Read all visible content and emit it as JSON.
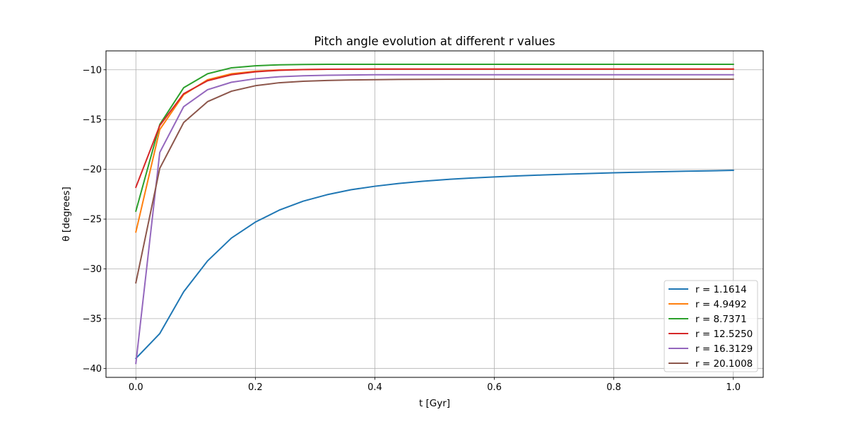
{
  "chart_data": {
    "type": "line",
    "title": "Pitch angle evolution at different r values",
    "xlabel": "t [Gyr]",
    "ylabel": "θ [degrees]",
    "xlim": [
      -0.05,
      1.05
    ],
    "ylim": [
      -40.9,
      -8.1
    ],
    "xticks": [
      0.0,
      0.2,
      0.4,
      0.6,
      0.8,
      1.0
    ],
    "xtick_labels": [
      "0.0",
      "0.2",
      "0.4",
      "0.6",
      "0.8",
      "1.0"
    ],
    "yticks": [
      -40,
      -35,
      -30,
      -25,
      -20,
      -15,
      -10
    ],
    "ytick_labels": [
      "−40",
      "−35",
      "−30",
      "−25",
      "−20",
      "−15",
      "−10"
    ],
    "grid": true,
    "legend_position": "lower-right",
    "x": [
      0.0,
      0.04,
      0.08,
      0.12,
      0.16,
      0.2,
      0.24,
      0.28,
      0.32,
      0.36,
      0.4,
      0.44,
      0.48,
      0.52,
      0.56,
      0.6,
      0.64,
      0.68,
      0.72,
      0.76,
      0.8,
      0.84,
      0.88,
      0.92,
      0.96,
      1.0
    ],
    "series": [
      {
        "name": "r = 1.1614",
        "color": "#1f77b4",
        "values": [
          -39.0,
          -36.5,
          -32.3,
          -29.2,
          -26.9,
          -25.3,
          -24.1,
          -23.2,
          -22.55,
          -22.05,
          -21.7,
          -21.42,
          -21.2,
          -21.02,
          -20.88,
          -20.76,
          -20.66,
          -20.57,
          -20.49,
          -20.42,
          -20.35,
          -20.29,
          -20.24,
          -20.19,
          -20.15,
          -20.1
        ]
      },
      {
        "name": "r = 4.9492",
        "color": "#ff7f0e",
        "values": [
          -26.3,
          -16.0,
          -12.5,
          -11.0,
          -10.4,
          -10.15,
          -10.02,
          -9.97,
          -9.95,
          -9.94,
          -9.93,
          -9.93,
          -9.93,
          -9.93,
          -9.93,
          -9.93,
          -9.93,
          -9.93,
          -9.93,
          -9.93,
          -9.93,
          -9.93,
          -9.93,
          -9.93,
          -9.93,
          -9.93
        ]
      },
      {
        "name": "r = 8.7371",
        "color": "#2ca02c",
        "values": [
          -24.2,
          -15.5,
          -11.8,
          -10.4,
          -9.8,
          -9.6,
          -9.5,
          -9.47,
          -9.45,
          -9.45,
          -9.45,
          -9.45,
          -9.45,
          -9.45,
          -9.45,
          -9.45,
          -9.45,
          -9.45,
          -9.45,
          -9.45,
          -9.45,
          -9.45,
          -9.45,
          -9.45,
          -9.45,
          -9.45
        ]
      },
      {
        "name": "r = 12.5250",
        "color": "#d62728",
        "values": [
          -21.8,
          -15.6,
          -12.4,
          -11.1,
          -10.5,
          -10.2,
          -10.05,
          -9.98,
          -9.95,
          -9.94,
          -9.93,
          -9.93,
          -9.93,
          -9.93,
          -9.93,
          -9.93,
          -9.93,
          -9.93,
          -9.93,
          -9.93,
          -9.93,
          -9.93,
          -9.93,
          -9.93,
          -9.93,
          -9.93
        ]
      },
      {
        "name": "r = 16.3129",
        "color": "#9467bd",
        "values": [
          -39.5,
          -18.3,
          -13.7,
          -12.0,
          -11.25,
          -10.9,
          -10.7,
          -10.6,
          -10.55,
          -10.52,
          -10.5,
          -10.5,
          -10.5,
          -10.5,
          -10.5,
          -10.5,
          -10.5,
          -10.5,
          -10.5,
          -10.5,
          -10.5,
          -10.5,
          -10.5,
          -10.5,
          -10.5,
          -10.5
        ]
      },
      {
        "name": "r = 20.1008",
        "color": "#8c564b",
        "values": [
          -31.4,
          -19.9,
          -15.3,
          -13.2,
          -12.15,
          -11.6,
          -11.3,
          -11.15,
          -11.07,
          -11.02,
          -10.99,
          -10.97,
          -10.96,
          -10.95,
          -10.95,
          -10.95,
          -10.95,
          -10.95,
          -10.95,
          -10.95,
          -10.95,
          -10.95,
          -10.95,
          -10.95,
          -10.95,
          -10.95
        ]
      }
    ]
  }
}
